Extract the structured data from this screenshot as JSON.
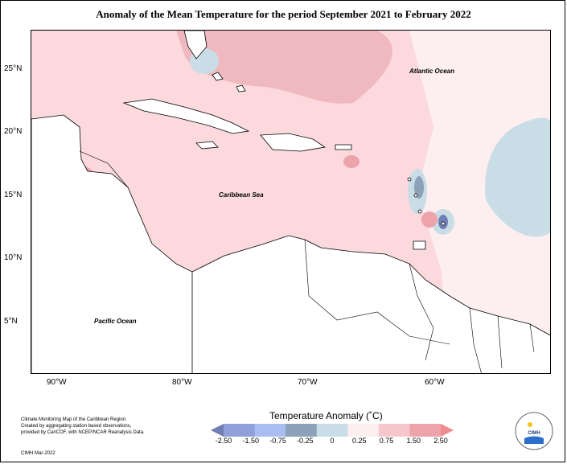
{
  "title": "Anomaly of the Mean Temperature for the period September 2021 to February 2022",
  "map_labels": {
    "atlantic": "Atlantic Ocean",
    "caribbean": "Caribbean Sea",
    "pacific": "Pacific Ocean"
  },
  "y_ticks": [
    "25°N",
    "20°N",
    "15°N",
    "10°N",
    "5°N"
  ],
  "x_ticks": [
    "90°W",
    "80°W",
    "70°W",
    "60°W"
  ],
  "credit": {
    "line1": "Climate Monitoring Map of the Caribbean Region.",
    "line2": "Created by aggregating station based observations,",
    "line3": "provided by CariCOF, with NCEP/NCAR Reanalysis Data.",
    "date": "CIMH Mar-2022"
  },
  "legend": {
    "title": "Temperature Anomaly (˚C)",
    "labels": [
      "-2.50",
      "-1.50",
      "-0.75",
      "-0.25",
      "0",
      "0.25",
      "0.75",
      "1.50",
      "2.50"
    ],
    "colors": [
      "#6f7fb5",
      "#8fa1d8",
      "#a9bdf0",
      "#8ba2b8",
      "#c9dde6",
      "#fdeef0",
      "#f5c7cc",
      "#eda3aa",
      "#f08c8c"
    ]
  },
  "logo": {
    "text": "CIMH",
    "icon": "cimh-logo-icon"
  },
  "colors": {
    "land": "#ffffff",
    "ocean_base": "#fbd9dc",
    "warm": "#f0b9bf",
    "cool": "#c9dde6"
  }
}
